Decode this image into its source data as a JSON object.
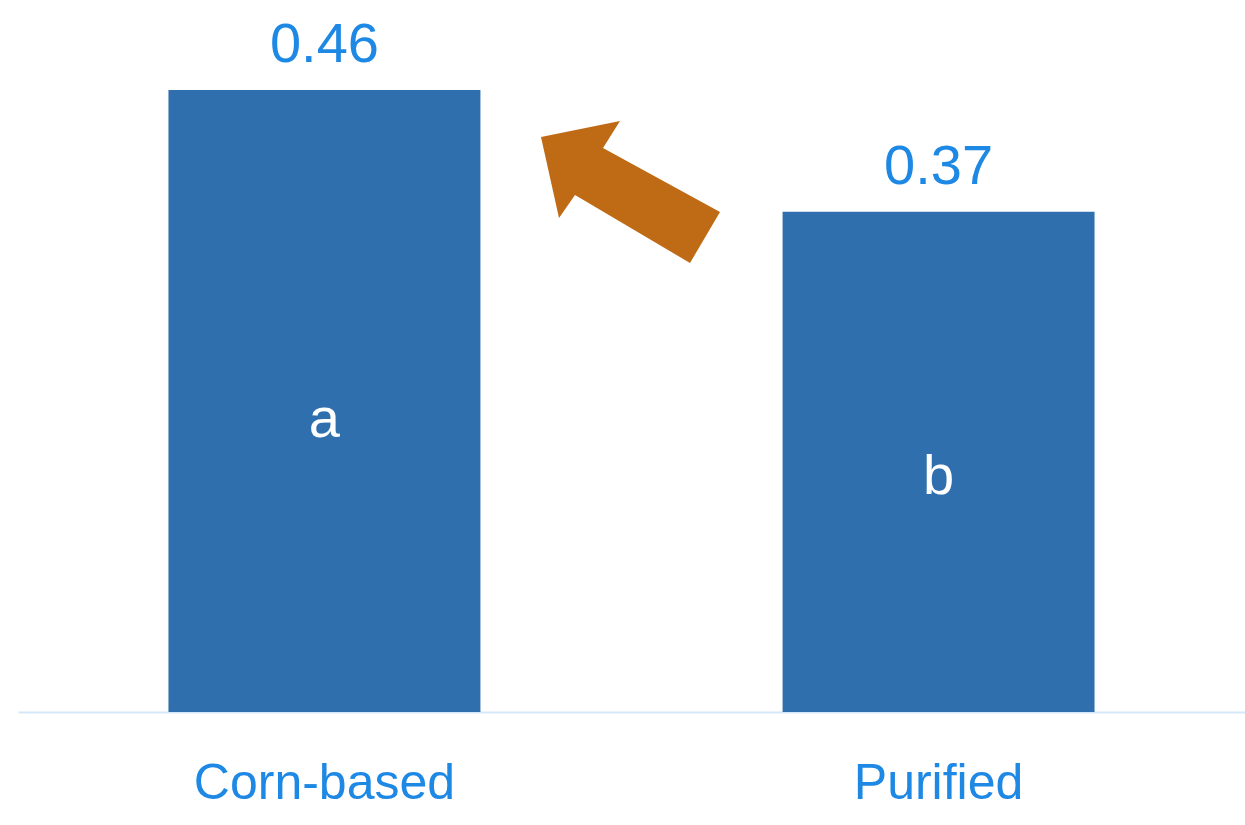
{
  "chart_data": {
    "type": "bar",
    "categories": [
      "Corn-based",
      "Purified"
    ],
    "values": [
      0.46,
      0.37
    ],
    "color": "#2f6fae",
    "data_labels": true,
    "annotations": [
      "a",
      "b"
    ]
  }
}
